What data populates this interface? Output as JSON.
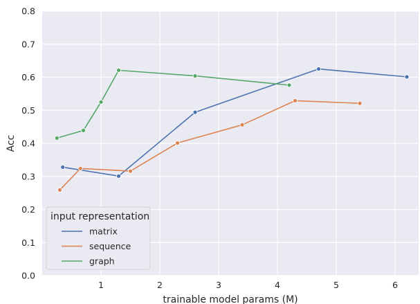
{
  "chart_data": {
    "type": "line",
    "xlabel": "trainable model params (M)",
    "ylabel": "Acc",
    "xlim": [
      0.0,
      6.4
    ],
    "ylim": [
      0.0,
      0.8
    ],
    "xticks": [
      1,
      2,
      3,
      4,
      5,
      6
    ],
    "yticks": [
      0.0,
      0.1,
      0.2,
      0.3,
      0.4,
      0.5,
      0.6,
      0.7,
      0.8
    ],
    "grid": true,
    "legend": {
      "title": "input representation",
      "placement": "lower-left"
    },
    "series": [
      {
        "name": "matrix",
        "color": "#4c72b0",
        "x": [
          0.35,
          1.3,
          2.6,
          4.7,
          6.2
        ],
        "y": [
          0.328,
          0.301,
          0.494,
          0.625,
          0.601
        ]
      },
      {
        "name": "sequence",
        "color": "#dd8452",
        "x": [
          0.3,
          0.65,
          1.5,
          2.3,
          3.4,
          4.3,
          5.4
        ],
        "y": [
          0.259,
          0.324,
          0.316,
          0.401,
          0.456,
          0.529,
          0.521
        ]
      },
      {
        "name": "graph",
        "color": "#55a868",
        "x": [
          0.25,
          0.7,
          1.0,
          1.3,
          2.6,
          4.2
        ],
        "y": [
          0.416,
          0.439,
          0.525,
          0.621,
          0.604,
          0.576
        ]
      }
    ]
  }
}
